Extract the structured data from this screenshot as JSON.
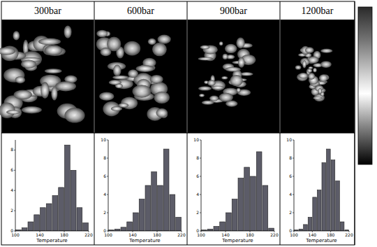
{
  "chart_data": [
    {
      "type": "histogram",
      "title": "300bar",
      "x_label": "Temperature",
      "color": "#5c5c68",
      "bins": [
        100,
        110,
        120,
        130,
        140,
        150,
        160,
        170,
        180,
        190,
        200,
        210,
        220
      ],
      "values": [
        0.1,
        0.3,
        0.9,
        1.6,
        2.3,
        2.7,
        3.5,
        4.3,
        8.5,
        6.0,
        2.3,
        0.8
      ],
      "xlim": [
        100,
        220
      ],
      "xticks": [
        100,
        140,
        180,
        220
      ],
      "ylim": [
        0,
        9
      ],
      "yticks": [
        0,
        2,
        4,
        6,
        8
      ]
    },
    {
      "type": "histogram",
      "title": "600bar",
      "x_label": "Temperature",
      "color": "#5c5c68",
      "bins": [
        100,
        110,
        120,
        130,
        140,
        150,
        160,
        170,
        180,
        190,
        200,
        210,
        220
      ],
      "values": [
        0.1,
        0.2,
        0.4,
        1.0,
        2.0,
        3.5,
        5.0,
        6.5,
        5.0,
        9.0,
        4.0,
        1.5
      ],
      "xlim": [
        100,
        220
      ],
      "xticks": [
        100,
        140,
        180,
        220
      ],
      "ylim": [
        0,
        10
      ],
      "yticks": [
        0,
        2,
        4,
        6,
        8,
        10
      ]
    },
    {
      "type": "histogram",
      "title": "900bar",
      "x_label": "Temperature",
      "color": "#5c5c68",
      "bins": [
        100,
        110,
        120,
        130,
        140,
        150,
        160,
        170,
        180,
        190,
        200,
        210,
        220
      ],
      "values": [
        0.1,
        0.2,
        0.5,
        1.0,
        2.0,
        3.5,
        5.8,
        7.0,
        6.0,
        8.7,
        5.0,
        0.3
      ],
      "xlim": [
        100,
        220
      ],
      "xticks": [
        100,
        140,
        180,
        220
      ],
      "ylim": [
        0,
        10
      ],
      "yticks": [
        0,
        2,
        4,
        6,
        8,
        10
      ]
    },
    {
      "type": "histogram",
      "title": "1200bar",
      "x_label": "Temperature",
      "color": "#5c5c68",
      "bins": [
        100,
        110,
        120,
        130,
        140,
        150,
        160,
        170,
        180,
        190,
        200,
        210,
        220
      ],
      "values": [
        0.1,
        0.2,
        0.7,
        1.5,
        3.7,
        4.5,
        7.5,
        9.0,
        7.8,
        5.5,
        1.0,
        0.1
      ],
      "xlim": [
        100,
        220
      ],
      "xticks": [
        100,
        140,
        180,
        220
      ],
      "ylim": [
        0,
        10
      ],
      "yticks": [
        0,
        2,
        4,
        6,
        8,
        10
      ]
    }
  ]
}
